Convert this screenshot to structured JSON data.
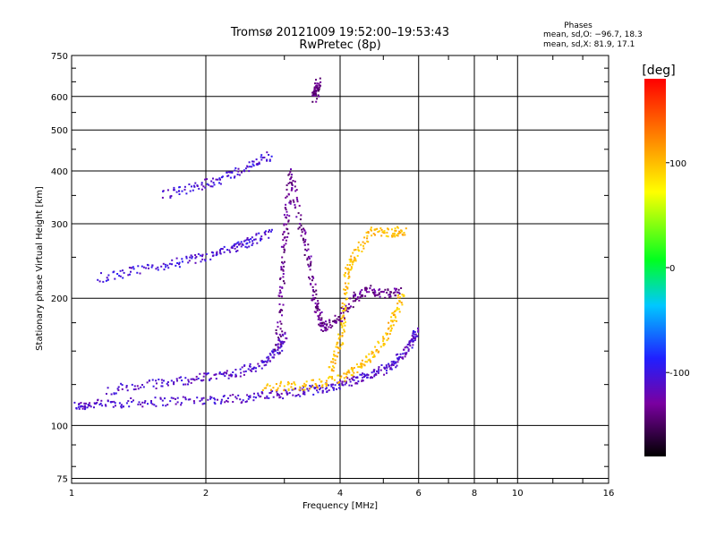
{
  "chart_data": {
    "type": "scatter",
    "title": "Tromsø 20121009 19:52:00–19:53:43",
    "subtitle": "RwPretec (8p)",
    "xlabel": "Frequency [MHz]",
    "ylabel": "Stationary phase Virtual Height [km]",
    "x_scale": "log",
    "y_scale": "log",
    "xlim": [
      1,
      16
    ],
    "ylim": [
      73,
      750
    ],
    "x_ticks": [
      1,
      2,
      4,
      6,
      8,
      10,
      16
    ],
    "y_ticks": [
      75,
      100,
      200,
      300,
      400,
      500,
      600,
      750
    ],
    "grid": true,
    "phases_box": {
      "title": "Phases",
      "line_o": "mean, sd,O: −96.7, 18.3",
      "line_x": "mean, sd,X:  81.9, 17.1"
    },
    "colorbar": {
      "label": "[deg]",
      "range": [
        -180,
        180
      ],
      "ticks": [
        100,
        0,
        -100
      ],
      "colormap": "rainbow: black → purple → blue → cyan → green → yellow → red"
    },
    "traces": [
      {
        "name": "",
        "phase": -110,
        "points": [
          [
            1.02,
            111
          ],
          [
            1.1,
            112
          ],
          [
            1.3,
            113
          ],
          [
            1.6,
            114
          ],
          [
            2.0,
            115
          ],
          [
            2.4,
            116
          ],
          [
            2.8,
            118
          ],
          [
            3.2,
            120
          ],
          [
            3.6,
            122
          ],
          [
            4.0,
            125
          ],
          [
            4.4,
            129
          ],
          [
            4.8,
            133
          ],
          [
            5.2,
            138
          ],
          [
            5.5,
            146
          ],
          [
            5.8,
            157
          ],
          [
            5.95,
            168
          ]
        ]
      },
      {
        "name": "",
        "phase": 100,
        "points": [
          [
            2.7,
            124
          ],
          [
            3.2,
            124
          ],
          [
            3.7,
            126
          ],
          [
            4.2,
            132
          ],
          [
            4.6,
            142
          ],
          [
            5.0,
            158
          ],
          [
            5.3,
            180
          ],
          [
            5.5,
            205
          ]
        ]
      },
      {
        "name": "",
        "phase": -110,
        "points": [
          [
            1.2,
            121
          ],
          [
            1.5,
            125
          ],
          [
            1.8,
            128
          ],
          [
            2.1,
            131
          ],
          [
            2.4,
            134
          ],
          [
            2.7,
            140
          ],
          [
            2.9,
            150
          ],
          [
            3.0,
            165
          ]
        ]
      },
      {
        "name": "",
        "phase": -105,
        "points": [
          [
            1.15,
            223
          ],
          [
            1.4,
            232
          ],
          [
            1.7,
            242
          ],
          [
            2.0,
            250
          ],
          [
            2.3,
            262
          ],
          [
            2.5,
            272
          ],
          [
            2.8,
            285
          ]
        ]
      },
      {
        "name": "",
        "phase": -105,
        "points": [
          [
            1.6,
            350
          ],
          [
            1.9,
            367
          ],
          [
            2.2,
            385
          ],
          [
            2.5,
            410
          ],
          [
            2.8,
            435
          ]
        ]
      },
      {
        "name": "",
        "phase": -135,
        "points": [
          [
            2.9,
            150
          ],
          [
            2.95,
            200
          ],
          [
            3.0,
            260
          ],
          [
            3.05,
            320
          ],
          [
            3.1,
            400
          ],
          [
            3.25,
            300
          ],
          [
            3.4,
            250
          ],
          [
            3.5,
            200
          ],
          [
            3.6,
            180
          ],
          [
            3.7,
            170
          ],
          [
            4.0,
            180
          ],
          [
            4.3,
            200
          ],
          [
            4.6,
            210
          ],
          [
            5.0,
            205
          ],
          [
            5.5,
            210
          ]
        ]
      },
      {
        "name": "",
        "phase": 100,
        "points": [
          [
            3.8,
            135
          ],
          [
            4.0,
            155
          ],
          [
            4.1,
            185
          ],
          [
            4.15,
            230
          ],
          [
            4.3,
            250
          ],
          [
            4.7,
            290
          ],
          [
            5.2,
            285
          ],
          [
            5.6,
            290
          ]
        ]
      },
      {
        "name": "",
        "phase": -140,
        "points": [
          [
            3.5,
            595
          ],
          [
            3.55,
            620
          ],
          [
            3.58,
            650
          ]
        ]
      }
    ]
  }
}
